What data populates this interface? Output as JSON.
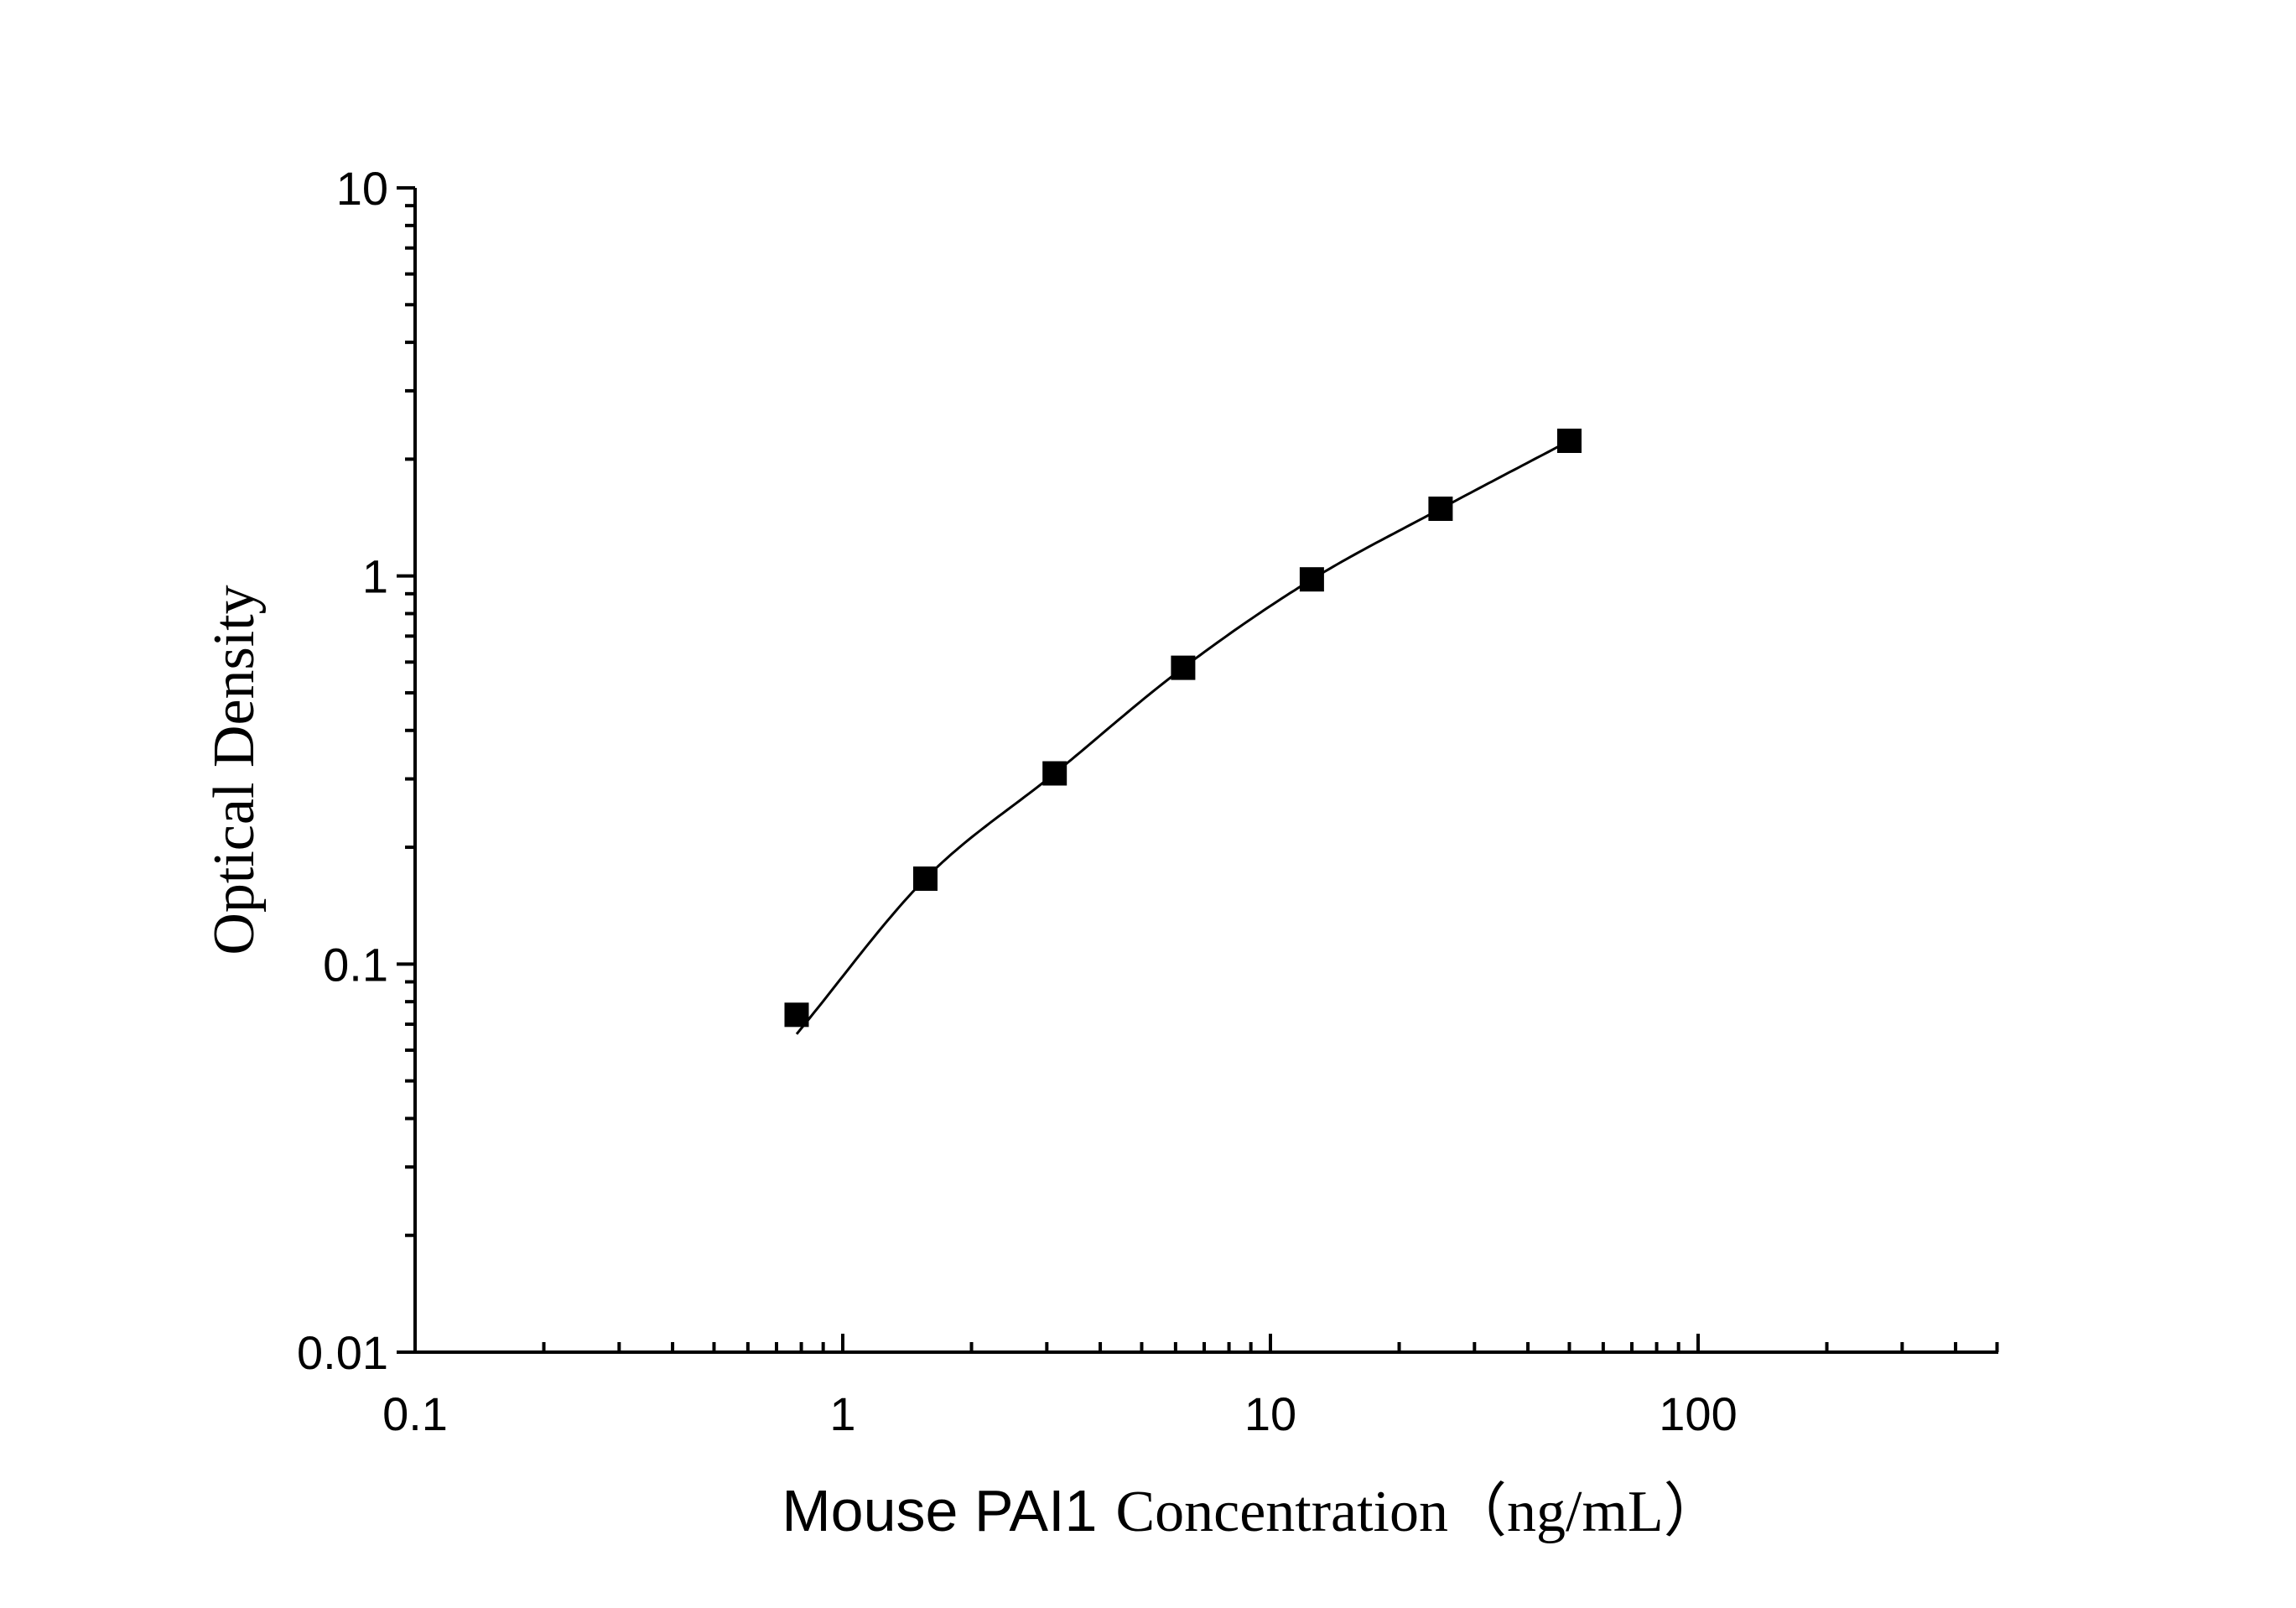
{
  "chart_data": {
    "type": "scatter",
    "x_scale": "log",
    "y_scale": "log",
    "xlim": [
      0.1,
      500
    ],
    "ylim": [
      0.01,
      10
    ],
    "x_ticks": [
      {
        "value": 0.1,
        "label": "0.1"
      },
      {
        "value": 1,
        "label": "1"
      },
      {
        "value": 10,
        "label": "10"
      },
      {
        "value": 100,
        "label": "100"
      }
    ],
    "y_ticks": [
      {
        "value": 0.01,
        "label": "0.01"
      },
      {
        "value": 0.1,
        "label": "0.1"
      },
      {
        "value": 1,
        "label": "1"
      },
      {
        "value": 10,
        "label": "10"
      }
    ],
    "xlabel": {
      "prefix": "Mouse PAI1",
      "suffix": "Concentration（ng/mL）"
    },
    "ylabel": "Optical Density",
    "grid": false,
    "legend": "none",
    "series": [
      {
        "x": [
          0.78,
          1.56,
          3.13,
          6.25,
          12.5,
          25,
          50
        ],
        "y": [
          0.074,
          0.166,
          0.31,
          0.58,
          0.98,
          1.49,
          2.23
        ],
        "marker": "square",
        "color": "#000000"
      }
    ],
    "fit_curve": {
      "x_start": 0.78,
      "x_end": 50,
      "y_start": 0.066,
      "color": "#000000"
    }
  }
}
